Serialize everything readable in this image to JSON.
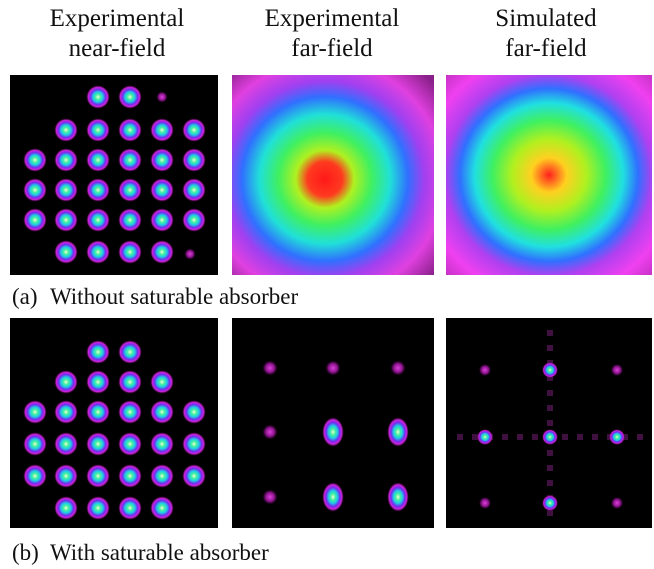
{
  "columns": [
    [
      "Experimental",
      "near-field"
    ],
    [
      "Experimental",
      "far-field"
    ],
    [
      "Simulated",
      "far-field"
    ]
  ],
  "rows": [
    {
      "label": "(a)",
      "caption": "Without saturable absorber"
    },
    {
      "label": "(b)",
      "caption": "With saturable absorber"
    }
  ]
}
